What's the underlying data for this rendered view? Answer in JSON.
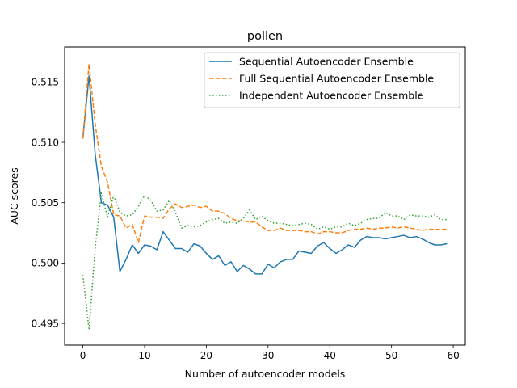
{
  "chart_data": {
    "type": "line",
    "title": "pollen",
    "xlabel": "Number of autoencoder models",
    "ylabel": "AUC scores",
    "xlim": [
      -2.95,
      61.95
    ],
    "ylim": [
      0.4932,
      0.5179
    ],
    "xticks": [
      0,
      10,
      20,
      30,
      40,
      50,
      60
    ],
    "xtick_labels": [
      "0",
      "10",
      "20",
      "30",
      "40",
      "50",
      "60"
    ],
    "yticks": [
      0.495,
      0.5,
      0.505,
      0.51,
      0.515
    ],
    "ytick_labels": [
      "0.495",
      "0.500",
      "0.505",
      "0.510",
      "0.515"
    ],
    "grid": false,
    "legend_position": "top-right",
    "x": [
      0,
      1,
      2,
      3,
      4,
      5,
      6,
      7,
      8,
      9,
      10,
      11,
      12,
      13,
      14,
      15,
      16,
      17,
      18,
      19,
      20,
      21,
      22,
      23,
      24,
      25,
      26,
      27,
      28,
      29,
      30,
      31,
      32,
      33,
      34,
      35,
      36,
      37,
      38,
      39,
      40,
      41,
      42,
      43,
      44,
      45,
      46,
      47,
      48,
      49,
      50,
      51,
      52,
      53,
      54,
      55,
      56,
      57,
      58,
      59
    ],
    "series": [
      {
        "name": "Sequential Autoencoder Ensemble",
        "color": "#1f77b4",
        "style": "solid",
        "values": [
          0.5103,
          0.5155,
          0.509,
          0.505,
          0.5048,
          0.5038,
          0.4993,
          0.5003,
          0.5015,
          0.5008,
          0.5015,
          0.5014,
          0.5011,
          0.5026,
          0.5019,
          0.5012,
          0.5012,
          0.5009,
          0.5016,
          0.5014,
          0.5008,
          0.5003,
          0.5006,
          0.4998,
          0.5001,
          0.4993,
          0.4998,
          0.4995,
          0.4991,
          0.4991,
          0.4999,
          0.4996,
          0.5001,
          0.5003,
          0.5003,
          0.501,
          0.5009,
          0.5008,
          0.5014,
          0.5017,
          0.5012,
          0.5008,
          0.5011,
          0.5015,
          0.5013,
          0.5019,
          0.5022,
          0.5021,
          0.5021,
          0.502,
          0.5021,
          0.5022,
          0.5023,
          0.5021,
          0.5022,
          0.502,
          0.5017,
          0.5015,
          0.5015,
          0.5016
        ]
      },
      {
        "name": "Full Sequential Autoencoder Ensemble",
        "color": "#ff7f0e",
        "style": "dashed",
        "values": [
          0.5103,
          0.5165,
          0.5115,
          0.508,
          0.5067,
          0.504,
          0.5039,
          0.5029,
          0.5032,
          0.5017,
          0.5039,
          0.5038,
          0.5038,
          0.5037,
          0.5045,
          0.5049,
          0.5046,
          0.5047,
          0.5048,
          0.5046,
          0.5047,
          0.5043,
          0.5043,
          0.5041,
          0.5037,
          0.5035,
          0.5035,
          0.5034,
          0.5034,
          0.503,
          0.5027,
          0.5027,
          0.5029,
          0.5027,
          0.5027,
          0.5027,
          0.5026,
          0.5026,
          0.5024,
          0.5026,
          0.5026,
          0.5025,
          0.5025,
          0.5027,
          0.5028,
          0.5028,
          0.5029,
          0.5028,
          0.5029,
          0.5029,
          0.503,
          0.5029,
          0.503,
          0.5029,
          0.5028,
          0.5027,
          0.5028,
          0.5028,
          0.5028,
          0.5028
        ]
      },
      {
        "name": "Independent Autoencoder Ensemble",
        "color": "#2ca02c",
        "style": "dotted",
        "values": [
          0.499,
          0.4945,
          0.5013,
          0.5058,
          0.5038,
          0.5056,
          0.5042,
          0.5039,
          0.504,
          0.5047,
          0.5056,
          0.5052,
          0.5043,
          0.5044,
          0.5052,
          0.5042,
          0.5029,
          0.5031,
          0.503,
          0.5031,
          0.5034,
          0.5036,
          0.5037,
          0.5033,
          0.5034,
          0.5033,
          0.5037,
          0.5044,
          0.5036,
          0.5039,
          0.5035,
          0.5033,
          0.5033,
          0.5032,
          0.5031,
          0.5032,
          0.5033,
          0.5032,
          0.5028,
          0.503,
          0.5028,
          0.503,
          0.503,
          0.5033,
          0.5031,
          0.5033,
          0.5036,
          0.5037,
          0.5037,
          0.5042,
          0.5039,
          0.5039,
          0.5036,
          0.504,
          0.5039,
          0.5039,
          0.5038,
          0.504,
          0.5036,
          0.5036
        ]
      }
    ]
  }
}
